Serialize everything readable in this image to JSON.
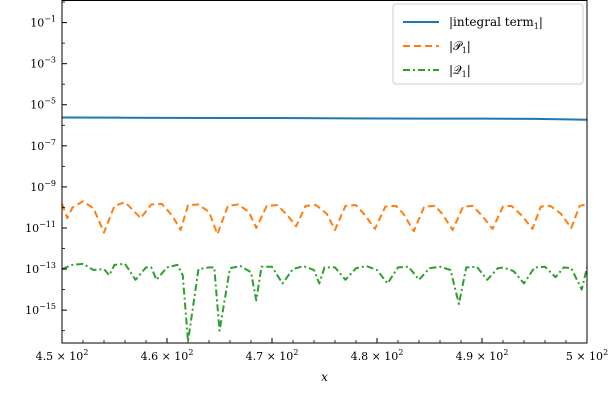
{
  "chart_data": {
    "type": "line",
    "xlabel": "x",
    "ylabel": "",
    "xlim": [
      450,
      500
    ],
    "ylim_log10": [
      -16.6,
      0.1
    ],
    "yscale": "log",
    "grid": false,
    "legend_position": "top-right",
    "x_ticks": [
      {
        "value": 450,
        "mant": "4.5",
        "exp": "2"
      },
      {
        "value": 460,
        "mant": "4.6",
        "exp": "2"
      },
      {
        "value": 470,
        "mant": "4.7",
        "exp": "2"
      },
      {
        "value": 480,
        "mant": "4.8",
        "exp": "2"
      },
      {
        "value": 490,
        "mant": "4.9",
        "exp": "2"
      },
      {
        "value": 500,
        "mant": "5",
        "exp": "2"
      }
    ],
    "y_ticks": [
      {
        "log10": -1,
        "label": "−1"
      },
      {
        "log10": -3,
        "label": "−3"
      },
      {
        "log10": -5,
        "label": "−5"
      },
      {
        "log10": -7,
        "label": "−7"
      },
      {
        "log10": -9,
        "label": "−9"
      },
      {
        "log10": -11,
        "label": "−11"
      },
      {
        "log10": -13,
        "label": "−13"
      },
      {
        "log10": -15,
        "label": "−15"
      }
    ],
    "series": [
      {
        "name_main": "|integral term",
        "name_sub": "1",
        "name_tail": "|",
        "color": "#1f77b4",
        "dash": "",
        "x": [
          450,
          455,
          460,
          465,
          470,
          475,
          480,
          485,
          490,
          495,
          498,
          500
        ],
        "y": [
          2.4e-06,
          2.35e-06,
          2.3e-06,
          2.28e-06,
          2.25e-06,
          2.2e-06,
          2.15e-06,
          2.12e-06,
          2.1e-06,
          2.05e-06,
          1.95e-06,
          1.85e-06
        ]
      },
      {
        "name_main": "|𝒫",
        "name_sub": "1",
        "name_tail": "|",
        "color": "#ff7f0e",
        "dash": "7,4",
        "x": [
          450,
          450.5,
          451,
          452,
          453,
          454,
          455,
          456,
          456.5,
          457.5,
          458.5,
          459.5,
          460.5,
          461.3,
          462,
          463,
          464,
          464.8,
          465.8,
          466.8,
          467.8,
          468.5,
          469.5,
          470.5,
          471.5,
          472.3,
          473.2,
          474.2,
          475.2,
          476,
          477,
          478,
          478.9,
          479.8,
          480.8,
          481.8,
          482.5,
          483.5,
          484.5,
          485.5,
          486.2,
          487.2,
          488.2,
          489.1,
          490,
          491,
          492,
          492.8,
          493.8,
          494.8,
          495.6,
          496.5,
          497.5,
          498.5,
          499.3,
          500
        ],
        "y": [
          1.5e-10,
          3e-11,
          1e-10,
          2e-10,
          9e-11,
          6e-12,
          1.2e-10,
          1.8e-10,
          1e-10,
          3e-11,
          1.4e-10,
          1.5e-10,
          4e-11,
          8e-12,
          1.3e-10,
          1.4e-10,
          6e-11,
          5e-12,
          1.2e-10,
          1.4e-10,
          6e-11,
          1e-11,
          1.2e-10,
          1.3e-10,
          4e-11,
          1.2e-11,
          1.2e-10,
          1.3e-10,
          5e-11,
          8e-12,
          1.2e-10,
          1.3e-10,
          4e-11,
          9e-12,
          1.1e-10,
          1.2e-10,
          5e-11,
          7e-12,
          1.1e-10,
          1.2e-10,
          5e-11,
          8e-12,
          1.1e-10,
          1.2e-10,
          4e-11,
          9e-12,
          1.1e-10,
          1.2e-10,
          4e-11,
          9e-12,
          1.1e-10,
          1.2e-10,
          5e-11,
          1e-11,
          1.2e-10,
          1.4e-10
        ]
      },
      {
        "name_main": "|𝒬",
        "name_sub": "1",
        "name_tail": "|",
        "color": "#2ca02c",
        "dash": "7,3,2,3",
        "x": [
          450,
          451,
          452,
          453,
          454,
          454.5,
          455,
          456,
          457,
          458,
          458.5,
          459,
          460,
          461,
          461.5,
          462,
          463,
          464,
          464.5,
          465,
          466,
          467,
          468,
          468.5,
          469,
          470,
          471,
          472,
          473,
          474,
          474.5,
          475,
          476,
          477,
          478,
          479,
          480,
          481,
          482,
          483,
          484,
          485,
          486,
          487,
          487.8,
          488.5,
          489.5,
          490.5,
          491.5,
          492,
          493,
          494,
          495,
          496,
          497,
          497.8,
          498.5,
          499.5,
          500
        ],
        "y": [
          1e-13,
          1.6e-13,
          1.8e-13,
          9e-14,
          1e-13,
          5e-14,
          1.6e-13,
          1.8e-13,
          3e-14,
          1.2e-13,
          1.2e-13,
          3e-14,
          1.2e-13,
          1.6e-13,
          5e-14,
          3e-17,
          1e-13,
          1.2e-13,
          1.2e-13,
          1e-16,
          1.1e-13,
          1.4e-13,
          7e-14,
          3e-15,
          1.3e-13,
          1.3e-13,
          2e-14,
          1e-13,
          1.4e-13,
          9e-14,
          2e-14,
          1.2e-13,
          1.2e-13,
          3e-14,
          1.1e-13,
          1.4e-13,
          9e-14,
          2e-14,
          1.2e-13,
          1.3e-13,
          3e-14,
          1.1e-13,
          1.3e-13,
          9e-14,
          2e-15,
          1.2e-13,
          1.3e-13,
          3e-14,
          1.1e-13,
          1.2e-13,
          8e-14,
          2e-14,
          1.2e-13,
          1.3e-13,
          4e-14,
          1.2e-13,
          1.1e-13,
          1e-14,
          1.2e-13
        ]
      }
    ]
  }
}
